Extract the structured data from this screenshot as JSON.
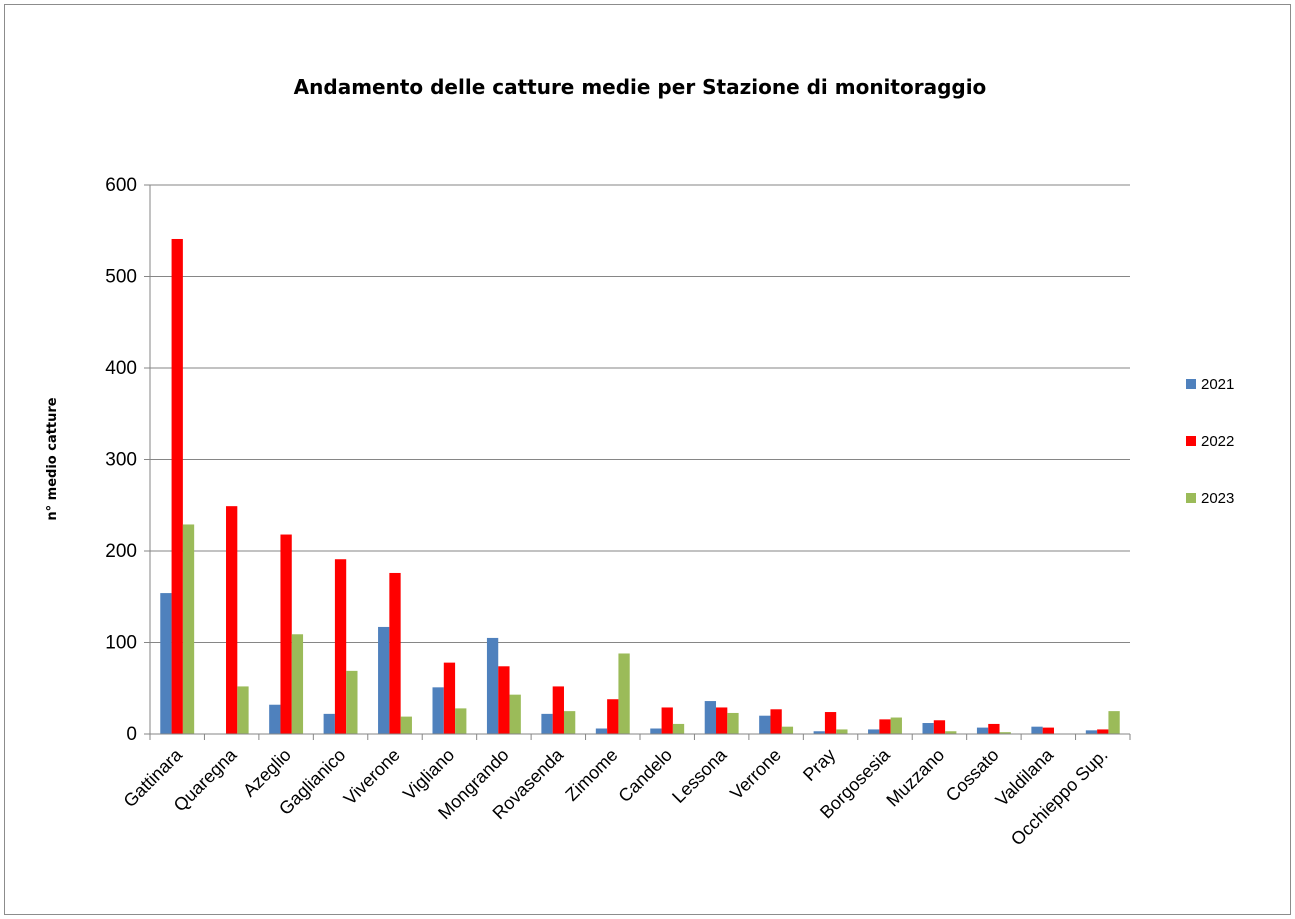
{
  "chart_data": {
    "type": "bar",
    "title": "Andamento delle catture medie per Stazione di monitoraggio",
    "xlabel": "",
    "ylabel": "n° medio catture",
    "ylim": [
      0,
      600
    ],
    "yticks": [
      0,
      100,
      200,
      300,
      400,
      500,
      600
    ],
    "grid": true,
    "legend_position": "right",
    "categories": [
      "Gattinara",
      "Quaregna",
      "Azeglio",
      "Gaglianico",
      "Viverone",
      "Vigliano",
      "Mongrando",
      "Rovasenda",
      "Zimome",
      "Candelo",
      "Lessona",
      "Verrone",
      "Pray",
      "Borgosesia",
      "Muzzano",
      "Cossato",
      "Valdilana",
      "Occhieppo Sup."
    ],
    "series": [
      {
        "name": "2021",
        "color": "#4f81bd",
        "values": [
          154,
          0,
          32,
          22,
          117,
          51,
          105,
          22,
          6,
          6,
          36,
          20,
          3,
          5,
          12,
          7,
          8,
          4
        ]
      },
      {
        "name": "2022",
        "color": "#ff0000",
        "values": [
          541,
          249,
          218,
          191,
          176,
          78,
          74,
          52,
          38,
          29,
          29,
          27,
          24,
          16,
          15,
          11,
          7,
          5
        ]
      },
      {
        "name": "2023",
        "color": "#9bbb59",
        "values": [
          229,
          52,
          109,
          69,
          19,
          28,
          43,
          25,
          88,
          11,
          23,
          8,
          5,
          18,
          3,
          2,
          0,
          25
        ]
      }
    ]
  }
}
